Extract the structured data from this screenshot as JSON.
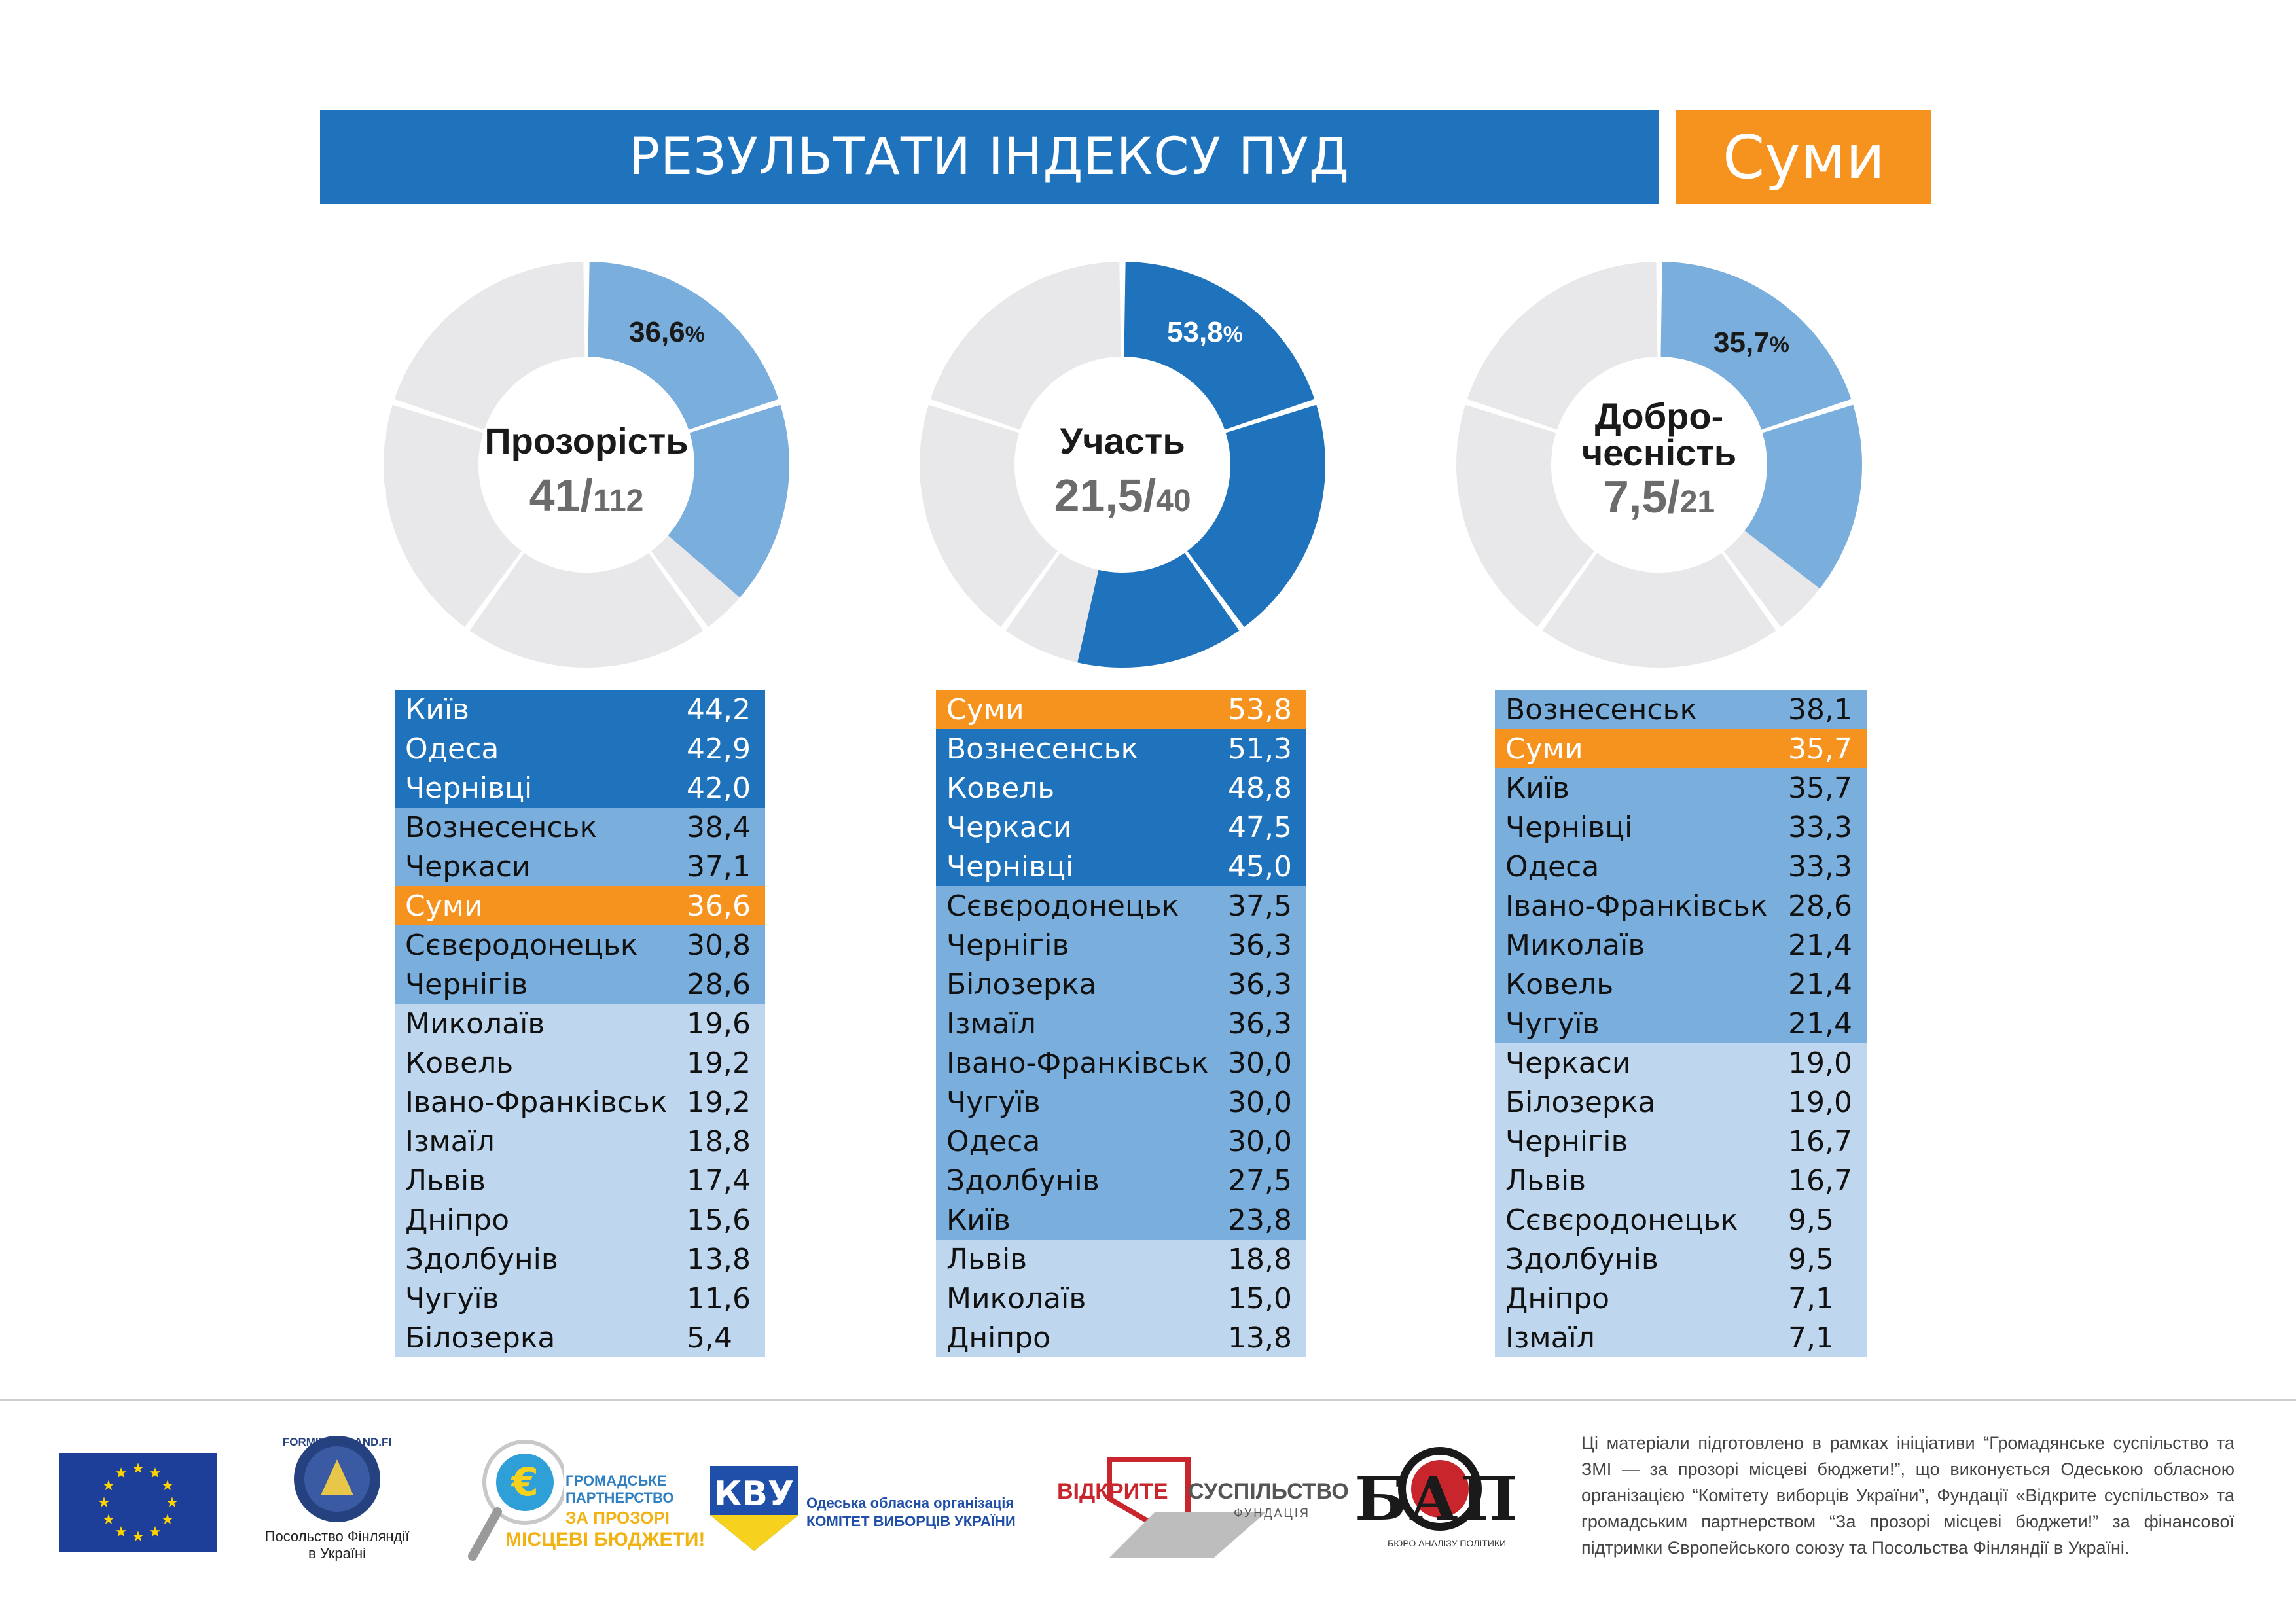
{
  "header": {
    "title": "РЕЗУЛЬТАТИ ІНДЕКСУ ПУД",
    "city": "Суми"
  },
  "colors": {
    "dark_blue": "#1f73bc",
    "mid_blue": "#7aaedc",
    "light_blue": "#bfd7ee",
    "highlight": "#f6921e",
    "grey": "#e8e8ea"
  },
  "chart_data": [
    {
      "type": "pie",
      "title": "Прозорість",
      "score": "41/",
      "max": "112",
      "value": 36.6,
      "percent_label": "36,6",
      "percent_sign": "%",
      "color": "#7aaedc",
      "rows": [
        {
          "name": "Київ",
          "value": "44,2",
          "tier": 1
        },
        {
          "name": "Одеса",
          "value": "42,9",
          "tier": 1
        },
        {
          "name": "Чернівці",
          "value": "42,0",
          "tier": 1
        },
        {
          "name": "Вознесенськ",
          "value": "38,4",
          "tier": 2
        },
        {
          "name": "Черкаси",
          "value": "37,1",
          "tier": 2
        },
        {
          "name": "Суми",
          "value": "36,6",
          "tier": 0
        },
        {
          "name": "Сєвєродонецьк",
          "value": "30,8",
          "tier": 2
        },
        {
          "name": "Чернігів",
          "value": "28,6",
          "tier": 2
        },
        {
          "name": "Миколаїв",
          "value": "19,6",
          "tier": 3
        },
        {
          "name": "Ковель",
          "value": "19,2",
          "tier": 3
        },
        {
          "name": "Івано-Франківськ",
          "value": "19,2",
          "tier": 3
        },
        {
          "name": "Ізмаїл",
          "value": "18,8",
          "tier": 3
        },
        {
          "name": "Львів",
          "value": "17,4",
          "tier": 3
        },
        {
          "name": "Дніпро",
          "value": "15,6",
          "tier": 3
        },
        {
          "name": "Здолбунів",
          "value": "13,8",
          "tier": 3
        },
        {
          "name": "Чугуїв",
          "value": "11,6",
          "tier": 3
        },
        {
          "name": "Білозерка",
          "value": "5,4",
          "tier": 3
        }
      ]
    },
    {
      "type": "pie",
      "title": "Участь",
      "score": "21,5/",
      "max": "40",
      "value": 53.8,
      "percent_label": "53,8",
      "percent_sign": "%",
      "color": "#1f73bc",
      "rows": [
        {
          "name": "Суми",
          "value": "53,8",
          "tier": 0
        },
        {
          "name": "Вознесенськ",
          "value": "51,3",
          "tier": 1
        },
        {
          "name": "Ковель",
          "value": "48,8",
          "tier": 1
        },
        {
          "name": "Черкаси",
          "value": "47,5",
          "tier": 1
        },
        {
          "name": "Чернівці",
          "value": "45,0",
          "tier": 1
        },
        {
          "name": "Сєвєродонецьк",
          "value": "37,5",
          "tier": 2
        },
        {
          "name": "Чернігів",
          "value": "36,3",
          "tier": 2
        },
        {
          "name": "Білозерка",
          "value": "36,3",
          "tier": 2
        },
        {
          "name": "Ізмаїл",
          "value": "36,3",
          "tier": 2
        },
        {
          "name": "Івано-Франківськ",
          "value": "30,0",
          "tier": 2
        },
        {
          "name": "Чугуїв",
          "value": "30,0",
          "tier": 2
        },
        {
          "name": "Одеса",
          "value": "30,0",
          "tier": 2
        },
        {
          "name": "Здолбунів",
          "value": "27,5",
          "tier": 2
        },
        {
          "name": "Київ",
          "value": "23,8",
          "tier": 2
        },
        {
          "name": "Львів",
          "value": "18,8",
          "tier": 3
        },
        {
          "name": "Миколаїв",
          "value": "15,0",
          "tier": 3
        },
        {
          "name": "Дніпро",
          "value": "13,8",
          "tier": 3
        }
      ]
    },
    {
      "type": "pie",
      "title": "Добро-",
      "title2": "чесність",
      "score": "7,5/",
      "max": "21",
      "value": 35.7,
      "percent_label": "35,7",
      "percent_sign": "%",
      "color": "#7aaedc",
      "rows": [
        {
          "name": "Вознесенськ",
          "value": "38,1",
          "tier": 2
        },
        {
          "name": "Суми",
          "value": "35,7",
          "tier": 0
        },
        {
          "name": "Київ",
          "value": "35,7",
          "tier": 2
        },
        {
          "name": "Чернівці",
          "value": "33,3",
          "tier": 2
        },
        {
          "name": "Одеса",
          "value": "33,3",
          "tier": 2
        },
        {
          "name": "Івано-Франківськ",
          "value": "28,6",
          "tier": 2
        },
        {
          "name": "Миколаїв",
          "value": "21,4",
          "tier": 2
        },
        {
          "name": "Ковель",
          "value": "21,4",
          "tier": 2
        },
        {
          "name": "Чугуїв",
          "value": "21,4",
          "tier": 2
        },
        {
          "name": "Черкаси",
          "value": "19,0",
          "tier": 3
        },
        {
          "name": "Білозерка",
          "value": "19,0",
          "tier": 3
        },
        {
          "name": "Чернігів",
          "value": "16,7",
          "tier": 3
        },
        {
          "name": "Львів",
          "value": "16,7",
          "tier": 3
        },
        {
          "name": "Сєвєродонецьк",
          "value": "9,5",
          "tier": 3
        },
        {
          "name": "Здолбунів",
          "value": "9,5",
          "tier": 3
        },
        {
          "name": "Дніпро",
          "value": "7,1",
          "tier": 3
        },
        {
          "name": "Ізмаїл",
          "value": "7,1",
          "tier": 3
        }
      ]
    }
  ],
  "footer": {
    "note": "Ці матеріали підготовлено в рамках ініціативи “Громадянське суспільство та ЗМІ — за прозорі місцеві бюджети!”, що виконується Одеською обласною організацією “Комітету виборців України”, Фундації «Відкрите суспільство» та громадським партнерством “За прозорі місцеві бюджети!” за фінансової підтримки Європейського союзу та Посольства Фінляндії в Україні.",
    "finland_url": "FORMIN.FINLAND.FI",
    "finland_line1": "Посольство Фінляндії",
    "finland_line2": "в Україні",
    "partnership_line1": "ГРОМАДСЬКЕ",
    "partnership_line2": "ПАРТНЕРСТВО",
    "partnership_line3": "ЗА ПРОЗОРІ",
    "partnership_line4": "МІСЦЕВІ БЮДЖЕТИ!",
    "kvu_line1": "Одеська обласна організація",
    "kvu_line2": "КОМІТЕТ ВИБОРЦІВ УКРАЇНИ",
    "kvu_mark": "КВУ",
    "os_word1": "ВІДКРИТЕ",
    "os_word2": "СУСПІЛЬСТВО",
    "os_word3": "ФУНДАЦІЯ",
    "bap_mark": "БАП",
    "bap_sub": "БЮРО АНАЛІЗУ ПОЛІТИКИ"
  }
}
